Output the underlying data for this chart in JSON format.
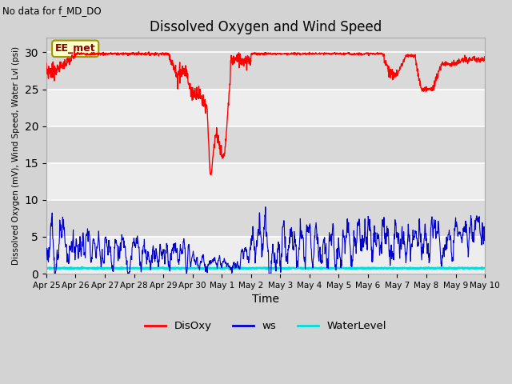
{
  "title": "Dissolved Oxygen and Wind Speed",
  "subtitle": "No data for f_MD_DO",
  "xlabel": "Time",
  "ylabel": "Dissolved Oxygen (mV), Wind Speed, Water Lvl (psi)",
  "annotation": "EE_met",
  "ylim": [
    0,
    32
  ],
  "yticks": [
    0,
    5,
    10,
    15,
    20,
    25,
    30
  ],
  "bg_color": "#d8d8d8",
  "plot_bg_color": "#d8d8d8",
  "disoxy_color": "#ff0000",
  "ws_color": "#0000cc",
  "waterlevel_color": "#00dddd",
  "xstart": 0,
  "xend": 15,
  "num_points": 1500,
  "tick_labels": [
    "Apr 25",
    "Apr 26",
    "Apr 27",
    "Apr 28",
    "Apr 29",
    "Apr 30",
    "May 1",
    "May 2",
    "May 3",
    "May 4",
    "May 5",
    "May 6",
    "May 7",
    "May 8",
    "May 9",
    "May 10"
  ]
}
